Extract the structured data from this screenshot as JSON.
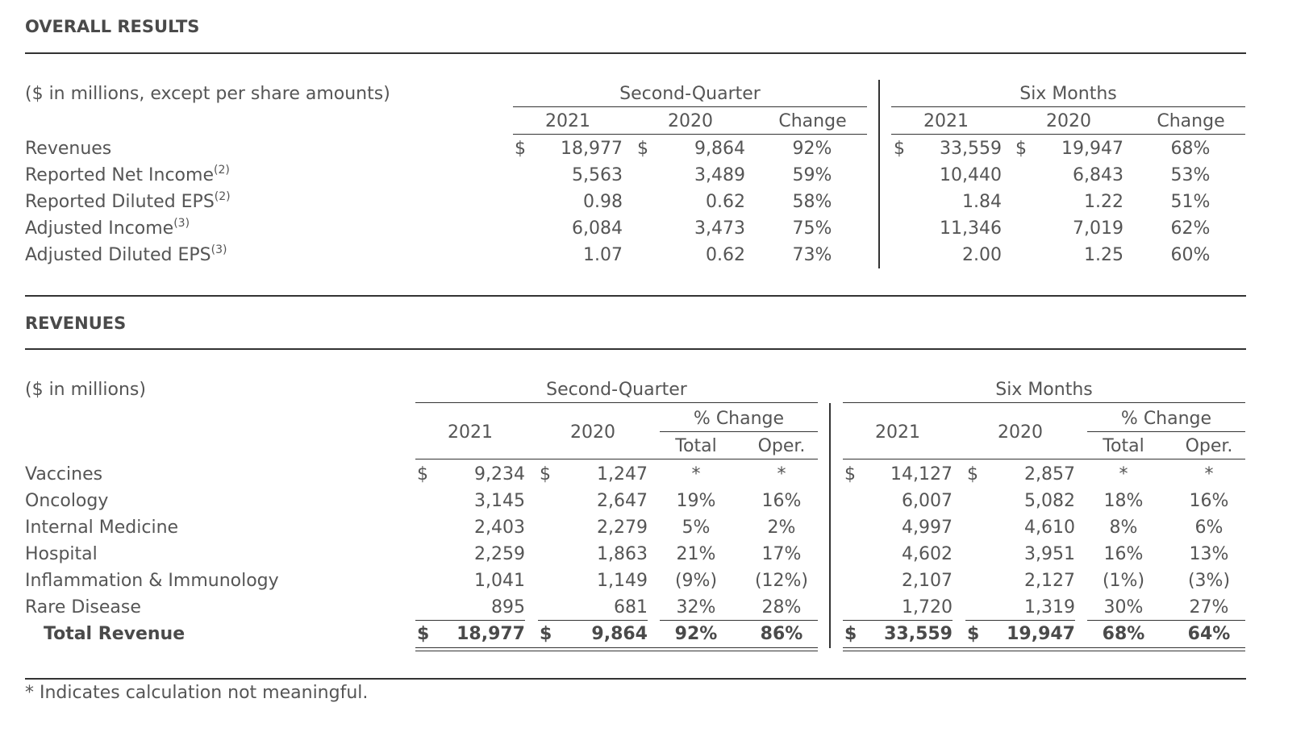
{
  "overall": {
    "title": "OVERALL RESULTS",
    "subtitle": "($ in millions, except per share amounts)",
    "groups": [
      "Second-Quarter",
      "Six Months"
    ],
    "columns": [
      "2021",
      "2020",
      "Change",
      "2021",
      "2020",
      "Change"
    ],
    "rows": [
      {
        "label": "Revenues",
        "note": "",
        "values": [
          "18,977",
          "9,864",
          "92%",
          "33,559",
          "19,947",
          "68%"
        ]
      },
      {
        "label": "Reported Net Income",
        "note": "(2)",
        "values": [
          "5,563",
          "3,489",
          "59%",
          "10,440",
          "6,843",
          "53%"
        ]
      },
      {
        "label": "Reported Diluted EPS",
        "note": "(2)",
        "values": [
          "0.98",
          "0.62",
          "58%",
          "1.84",
          "1.22",
          "51%"
        ]
      },
      {
        "label": "Adjusted Income",
        "note": "(3)",
        "values": [
          "6,084",
          "3,473",
          "75%",
          "11,346",
          "7,019",
          "62%"
        ]
      },
      {
        "label": "Adjusted Diluted EPS",
        "note": "(3)",
        "values": [
          "1.07",
          "0.62",
          "73%",
          "2.00",
          "1.25",
          "60%"
        ]
      }
    ]
  },
  "revenues": {
    "title": "REVENUES",
    "subtitle": "($ in millions)",
    "groups": [
      "Second-Quarter",
      "Six Months"
    ],
    "years": [
      "2021",
      "2020"
    ],
    "pct_change_label": "% Change",
    "sub_cols": [
      "Total",
      "Oper."
    ],
    "rows": [
      {
        "label": "Vaccines",
        "values": [
          "9,234",
          "1,247",
          "*",
          "*",
          "14,127",
          "2,857",
          "*",
          "*"
        ]
      },
      {
        "label": "Oncology",
        "values": [
          "3,145",
          "2,647",
          "19%",
          "16%",
          "6,007",
          "5,082",
          "18%",
          "16%"
        ]
      },
      {
        "label": "Internal Medicine",
        "values": [
          "2,403",
          "2,279",
          "5%",
          "2%",
          "4,997",
          "4,610",
          "8%",
          "6%"
        ]
      },
      {
        "label": "Hospital",
        "values": [
          "2,259",
          "1,863",
          "21%",
          "17%",
          "4,602",
          "3,951",
          "16%",
          "13%"
        ]
      },
      {
        "label": "Inflammation & Immunology",
        "values": [
          "1,041",
          "1,149",
          "(9%)",
          "(12%)",
          "2,107",
          "2,127",
          "(1%)",
          "(3%)"
        ]
      },
      {
        "label": "Rare Disease",
        "values": [
          "895",
          "681",
          "32%",
          "28%",
          "1,720",
          "1,319",
          "30%",
          "27%"
        ]
      }
    ],
    "total": {
      "label": "Total Revenue",
      "values": [
        "18,977",
        "9,864",
        "92%",
        "86%",
        "33,559",
        "19,947",
        "68%",
        "64%"
      ]
    }
  },
  "currency_symbol": "$",
  "footnote": "* Indicates calculation not meaningful."
}
